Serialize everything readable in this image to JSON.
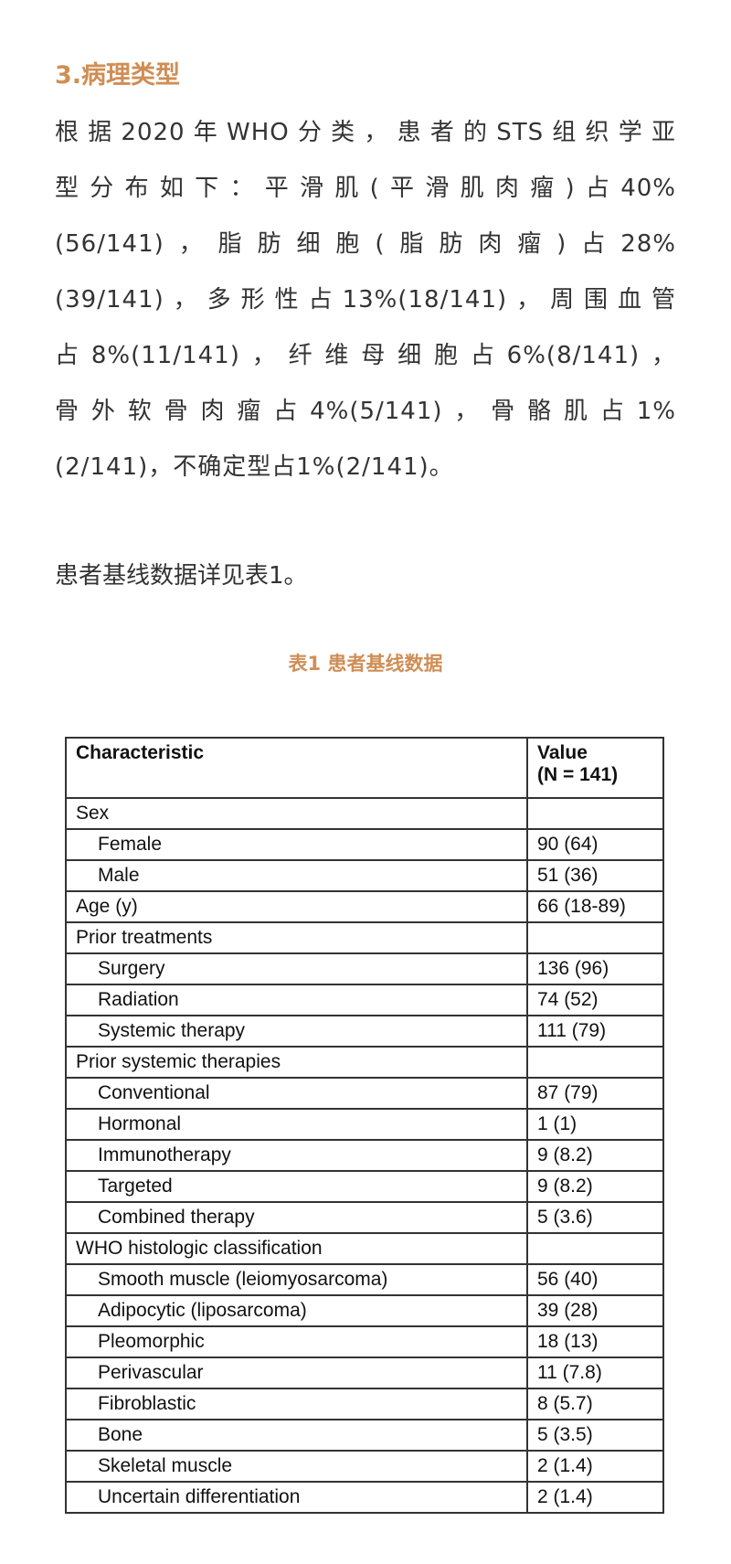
{
  "heading": "3.病理类型",
  "paragraph_lines": [
    "根据2020年WHO分类，患者的STS组织学亚",
    "型分布如下：平滑肌(平滑肌肉瘤)占40%",
    "(56/141)，脂肪细胞(脂肪肉瘤)占28%",
    "(39/141)，多形性占13%(18/141)，周围血管",
    "占8%(11/141)，纤维母细胞占6%(8/141)，",
    "骨外软骨肉瘤占4%(5/141)，骨骼肌占1%",
    "(2/141)，不确定型占1%(2/141)。"
  ],
  "reference": "患者基线数据详见表1。",
  "caption": "表1  患者基线数据",
  "table": {
    "headers": [
      "Characteristic",
      "Value (N = 141)"
    ],
    "rows": [
      {
        "label": "Sex",
        "value": "",
        "indent": false
      },
      {
        "label": "Female",
        "value": "90 (64)",
        "indent": true
      },
      {
        "label": "Male",
        "value": "51 (36)",
        "indent": true
      },
      {
        "label": "Age (y)",
        "value": "66 (18-89)",
        "indent": false
      },
      {
        "label": "Prior treatments",
        "value": "",
        "indent": false
      },
      {
        "label": "Surgery",
        "value": "136 (96)",
        "indent": true
      },
      {
        "label": "Radiation",
        "value": "74 (52)",
        "indent": true
      },
      {
        "label": "Systemic therapy",
        "value": "111 (79)",
        "indent": true
      },
      {
        "label": "Prior systemic therapies",
        "value": "",
        "indent": false
      },
      {
        "label": "Conventional",
        "value": "87 (79)",
        "indent": true
      },
      {
        "label": "Hormonal",
        "value": "1 (1)",
        "indent": true
      },
      {
        "label": "Immunotherapy",
        "value": "9 (8.2)",
        "indent": true
      },
      {
        "label": "Targeted",
        "value": "9 (8.2)",
        "indent": true
      },
      {
        "label": "Combined therapy",
        "value": "5 (3.6)",
        "indent": true
      },
      {
        "label": "WHO histologic classification",
        "value": "",
        "indent": false
      },
      {
        "label": "Smooth muscle (leiomyosarcoma)",
        "value": "56 (40)",
        "indent": true
      },
      {
        "label": "Adipocytic (liposarcoma)",
        "value": "39 (28)",
        "indent": true
      },
      {
        "label": "Pleomorphic",
        "value": "18 (13)",
        "indent": true
      },
      {
        "label": "Perivascular",
        "value": "11 (7.8)",
        "indent": true
      },
      {
        "label": "Fibroblastic",
        "value": "8 (5.7)",
        "indent": true
      },
      {
        "label": "Bone",
        "value": "5 (3.5)",
        "indent": true
      },
      {
        "label": "Skeletal muscle",
        "value": "2 (1.4)",
        "indent": true
      },
      {
        "label": "Uncertain differentiation",
        "value": "2 (1.4)",
        "indent": true
      }
    ]
  },
  "colors": {
    "accent": "#d08e55",
    "text": "#333333"
  }
}
